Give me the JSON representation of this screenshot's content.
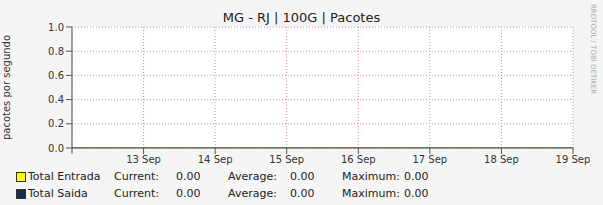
{
  "chart_data": {
    "type": "line",
    "title": "MG - RJ | 100G | Pacotes",
    "y_label": "pacotes por segundo",
    "annotations": [
      "RRDTOOL / TOBI OETIKER"
    ],
    "categories": [
      null,
      "13 Sep",
      "14 Sep",
      "15 Sep",
      "16 Sep",
      "17 Sep",
      "18 Sep",
      "19 Sep"
    ],
    "series": [
      {
        "name": "Total Entrada",
        "type": "area",
        "color": "#ffff00",
        "values": [
          0,
          0,
          0,
          0,
          0,
          0,
          0,
          0
        ],
        "stats": [
          {
            "name": "Current:",
            "value": 0,
            "label": "0.00"
          },
          {
            "name": "Average:",
            "value": 0,
            "label": "0.00"
          },
          {
            "name": "Maximum:",
            "value": 0,
            "label": "0.00"
          }
        ]
      },
      {
        "name": "Total Saida",
        "type": "line",
        "color": "#1a2a4a",
        "values": [
          0,
          0,
          0,
          0,
          0,
          0,
          0,
          0
        ],
        "stats": [
          {
            "name": "Current:",
            "value": 0,
            "label": "0.00"
          },
          {
            "name": "Average:",
            "value": 0,
            "label": "0.00"
          },
          {
            "name": "Maximum:",
            "value": 0,
            "label": "0.00"
          }
        ]
      }
    ],
    "ylim": [
      0,
      1
    ],
    "yticks": [
      {
        "value": 0,
        "label": "0.0"
      },
      {
        "value": 0.2,
        "label": "0.2"
      },
      {
        "value": 0.4,
        "label": "0.4"
      },
      {
        "value": 0.6,
        "label": "0.6"
      },
      {
        "value": 0.8,
        "label": "0.8"
      },
      {
        "value": 1,
        "label": "1.0"
      }
    ],
    "grid": true,
    "legend": "bottom"
  }
}
